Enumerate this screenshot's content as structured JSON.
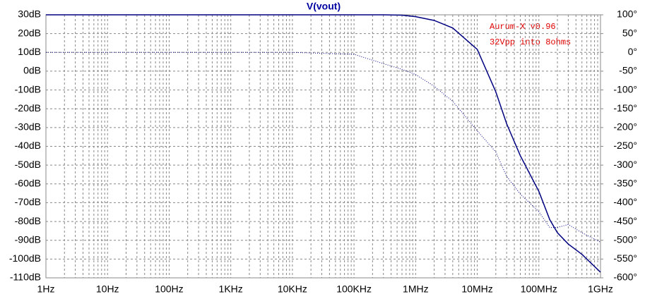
{
  "chart_data": {
    "type": "line",
    "title": "V(vout)",
    "title_color": "#0000a0",
    "annotations": [
      "Aurum-X v0.96",
      "32Vpp into 8ohms"
    ],
    "annotation_color": "#e00000",
    "x_log": true,
    "grid": true,
    "x": [
      1,
      10,
      100,
      1000,
      10000,
      100000,
      300000,
      600000,
      1000000,
      2000000,
      4000000,
      10000000,
      20000000,
      30000000,
      50000000,
      100000000,
      150000000,
      200000000,
      300000000,
      500000000,
      1000000000
    ],
    "series": [
      {
        "color": "#000080",
        "style": "solid",
        "values": [
          30,
          30,
          30,
          30,
          30,
          30,
          30,
          29.8,
          29,
          27,
          23,
          11.6,
          -11,
          -28,
          -45,
          -64,
          -79,
          -86,
          -92,
          -97.5,
          -107
        ]
      },
      {
        "color": "#000080",
        "style": "dotted",
        "axis": "y2",
        "values": [
          0,
          0,
          0,
          0,
          0,
          -5,
          -30,
          -45,
          -59,
          -90,
          -130,
          -209,
          -265,
          -330,
          -377,
          -424,
          -466,
          -466,
          -458,
          -480,
          -505
        ]
      }
    ],
    "xlim": [
      1,
      1000000000
    ],
    "xticks": [
      {
        "value": 1,
        "label": "1Hz"
      },
      {
        "value": 10,
        "label": "10Hz"
      },
      {
        "value": 100,
        "label": "100Hz"
      },
      {
        "value": 1000,
        "label": "1KHz"
      },
      {
        "value": 10000,
        "label": "10KHz"
      },
      {
        "value": 100000,
        "label": "100KHz"
      },
      {
        "value": 1000000,
        "label": "1MHz"
      },
      {
        "value": 10000000,
        "label": "10MHz"
      },
      {
        "value": 100000000,
        "label": "100MHz"
      },
      {
        "value": 1000000000,
        "label": "1GHz"
      }
    ],
    "ylim": [
      -110,
      30
    ],
    "yticks": [
      {
        "value": 30,
        "label": "30dB"
      },
      {
        "value": 20,
        "label": "20dB"
      },
      {
        "value": 10,
        "label": "10dB"
      },
      {
        "value": 0,
        "label": "0dB"
      },
      {
        "value": -10,
        "label": "-10dB"
      },
      {
        "value": -20,
        "label": "-20dB"
      },
      {
        "value": -30,
        "label": "-30dB"
      },
      {
        "value": -40,
        "label": "-40dB"
      },
      {
        "value": -50,
        "label": "-50dB"
      },
      {
        "value": -60,
        "label": "-60dB"
      },
      {
        "value": -70,
        "label": "-70dB"
      },
      {
        "value": -80,
        "label": "-80dB"
      },
      {
        "value": -90,
        "label": "-90dB"
      },
      {
        "value": -100,
        "label": "-100dB"
      },
      {
        "value": -110,
        "label": "-110dB"
      }
    ],
    "y2lim": [
      -600,
      100
    ],
    "y2ticks": [
      {
        "value": 100,
        "label": "100°"
      },
      {
        "value": 50,
        "label": "50°"
      },
      {
        "value": 0,
        "label": "0°"
      },
      {
        "value": -50,
        "label": "-50°"
      },
      {
        "value": -100,
        "label": "-100°"
      },
      {
        "value": -150,
        "label": "-150°"
      },
      {
        "value": -200,
        "label": "-200°"
      },
      {
        "value": -250,
        "label": "-250°"
      },
      {
        "value": -300,
        "label": "-300°"
      },
      {
        "value": -350,
        "label": "-350°"
      },
      {
        "value": -400,
        "label": "-400°"
      },
      {
        "value": -450,
        "label": "-450°"
      },
      {
        "value": -500,
        "label": "-500°"
      },
      {
        "value": -550,
        "label": "-550°"
      },
      {
        "value": -600,
        "label": "-600°"
      }
    ]
  }
}
